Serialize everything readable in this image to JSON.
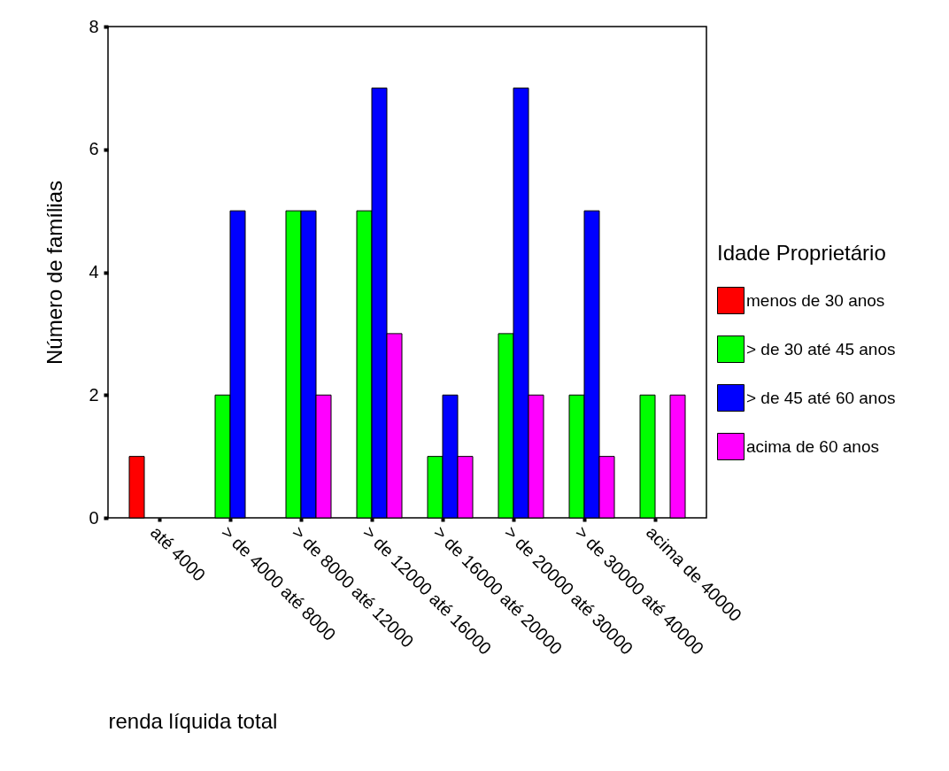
{
  "chart_data": {
    "type": "bar",
    "xlabel": "renda líquida total",
    "ylabel": "Número de famílias",
    "legend_title": "Idade  Proprietário",
    "categories": [
      "até 4000",
      "> de 4000 até 8000",
      "> de 8000 até 12000",
      "> de 12000 até 16000",
      "> de 16000 até 20000",
      "> de 20000 até 30000",
      "> de 30000 até 40000",
      "acima de 40000"
    ],
    "series": [
      {
        "name": "menos de 30 anos",
        "color": "#ff0000",
        "values": [
          1,
          null,
          null,
          null,
          null,
          null,
          null,
          null
        ]
      },
      {
        "name": "> de 30 até 45 anos",
        "color": "#00ff00",
        "values": [
          null,
          2,
          5,
          5,
          1,
          3,
          2,
          2
        ]
      },
      {
        "name": "> de 45 até 60 anos",
        "color": "#0000ff",
        "values": [
          null,
          5,
          5,
          7,
          2,
          7,
          5,
          null
        ]
      },
      {
        "name": "acima de 60 anos",
        "color": "#ff00ff",
        "values": [
          null,
          null,
          2,
          3,
          1,
          2,
          1,
          2
        ]
      }
    ],
    "ylim": [
      0,
      8
    ],
    "yticks": [
      0,
      2,
      4,
      6,
      8
    ],
    "grid": false,
    "legend": "right"
  }
}
